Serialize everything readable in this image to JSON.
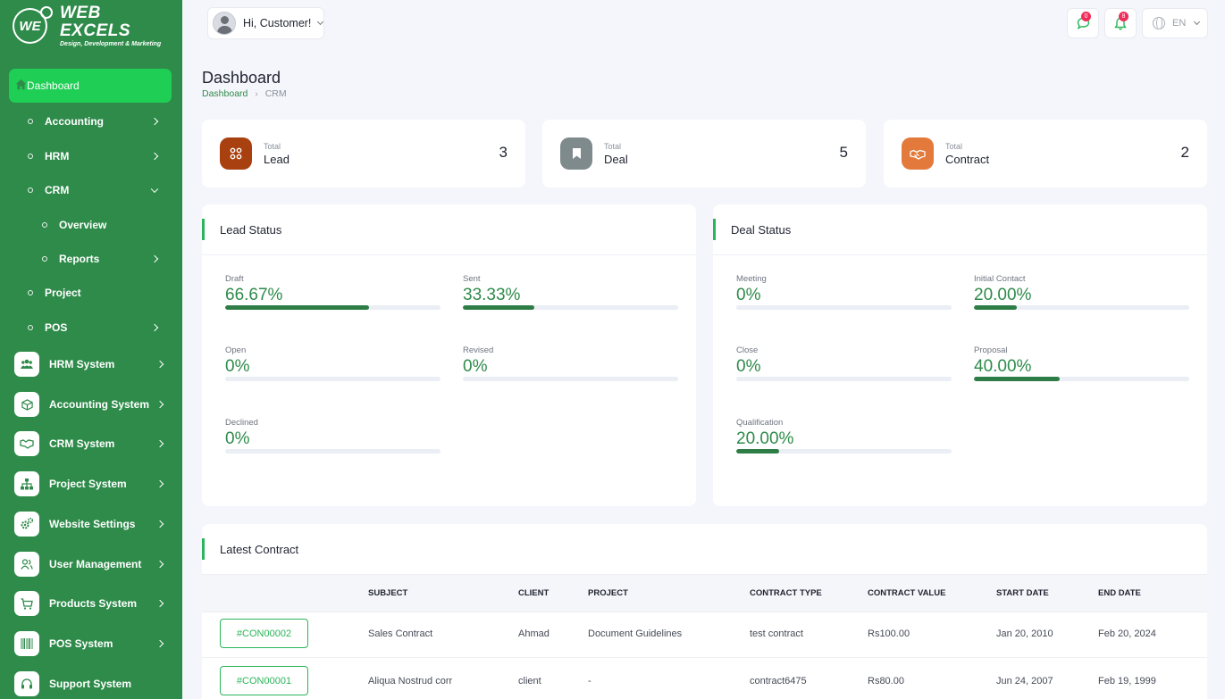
{
  "brand": {
    "title": "WEB EXCELS",
    "tagline": "Design, Development & Marketing",
    "mark": "WE"
  },
  "sidebar": {
    "active": {
      "label": "Dashboard",
      "icon": "home-icon"
    },
    "sub_items": [
      {
        "label": "Accounting",
        "chevron": "right"
      },
      {
        "label": "HRM",
        "chevron": "right"
      },
      {
        "label": "CRM",
        "chevron": "down"
      },
      {
        "label": "Overview",
        "chevron": ""
      },
      {
        "label": "Reports",
        "chevron": "right"
      },
      {
        "label": "Project",
        "chevron": ""
      },
      {
        "label": "POS",
        "chevron": "right"
      }
    ],
    "items": [
      {
        "label": "HRM System",
        "icon": "users-icon"
      },
      {
        "label": "Accounting System",
        "icon": "box-icon"
      },
      {
        "label": "CRM System",
        "icon": "handshake-icon"
      },
      {
        "label": "Project System",
        "icon": "sitemap-icon"
      },
      {
        "label": "Website Settings",
        "icon": "gears-icon"
      },
      {
        "label": "User Management",
        "icon": "user-group-icon"
      },
      {
        "label": "Products System",
        "icon": "cart-icon"
      },
      {
        "label": "POS System",
        "icon": "barcode-icon"
      },
      {
        "label": "Support System",
        "icon": "headset-icon"
      }
    ]
  },
  "topbar": {
    "greeting": "Hi, Customer!",
    "messages_count": "0",
    "notifications_count": "8",
    "language": "EN"
  },
  "page": {
    "title": "Dashboard",
    "breadcrumb": [
      "Dashboard",
      "CRM"
    ]
  },
  "stats": [
    {
      "caption": "Total",
      "name": "Lead",
      "value": "3",
      "color": "#a8410f",
      "icon": "dots-grid-icon"
    },
    {
      "caption": "Total",
      "name": "Deal",
      "value": "5",
      "color": "#7f8a8d",
      "icon": "bookmark-icon"
    },
    {
      "caption": "Total",
      "name": "Contract",
      "value": "2",
      "color": "#e37a3c",
      "icon": "handshake-icon"
    }
  ],
  "lead_status": {
    "title": "Lead Status",
    "metrics": [
      {
        "label": "Draft",
        "value": "66.67%",
        "fraction": 0.6667
      },
      {
        "label": "Sent",
        "value": "33.33%",
        "fraction": 0.3333
      },
      {
        "label": "Open",
        "value": "0%",
        "fraction": 0
      },
      {
        "label": "Revised",
        "value": "0%",
        "fraction": 0
      },
      {
        "label": "Declined",
        "value": "0%",
        "fraction": 0
      }
    ]
  },
  "deal_status": {
    "title": "Deal Status",
    "metrics": [
      {
        "label": "Meeting",
        "value": "0%",
        "fraction": 0
      },
      {
        "label": "Initial Contact",
        "value": "20.00%",
        "fraction": 0.2
      },
      {
        "label": "Close",
        "value": "0%",
        "fraction": 0
      },
      {
        "label": "Proposal",
        "value": "40.00%",
        "fraction": 0.4
      },
      {
        "label": "Qualification",
        "value": "20.00%",
        "fraction": 0.2
      }
    ]
  },
  "latest_contract": {
    "title": "Latest Contract",
    "columns": [
      "SUBJECT",
      "CLIENT",
      "PROJECT",
      "CONTRACT TYPE",
      "CONTRACT VALUE",
      "START DATE",
      "END DATE"
    ],
    "rows": [
      {
        "code": "#CON00002",
        "subject": "Sales Contract",
        "client": "Ahmad",
        "project": "Document Guidelines",
        "type": "test contract",
        "value": "Rs100.00",
        "start": "Jan 20, 2010",
        "end": "Feb 20, 2024"
      },
      {
        "code": "#CON00001",
        "subject": "Aliqua Nostrud corr",
        "client": "client",
        "project": "-",
        "type": "contract6475",
        "value": "Rs80.00",
        "start": "Jun 24, 2007",
        "end": "Feb 19, 1999"
      }
    ]
  },
  "colors": {
    "sidebar": "#2e8b4a",
    "active": "#1fcf55",
    "accent": "#2bb55a",
    "progress": "#2e7d46"
  }
}
